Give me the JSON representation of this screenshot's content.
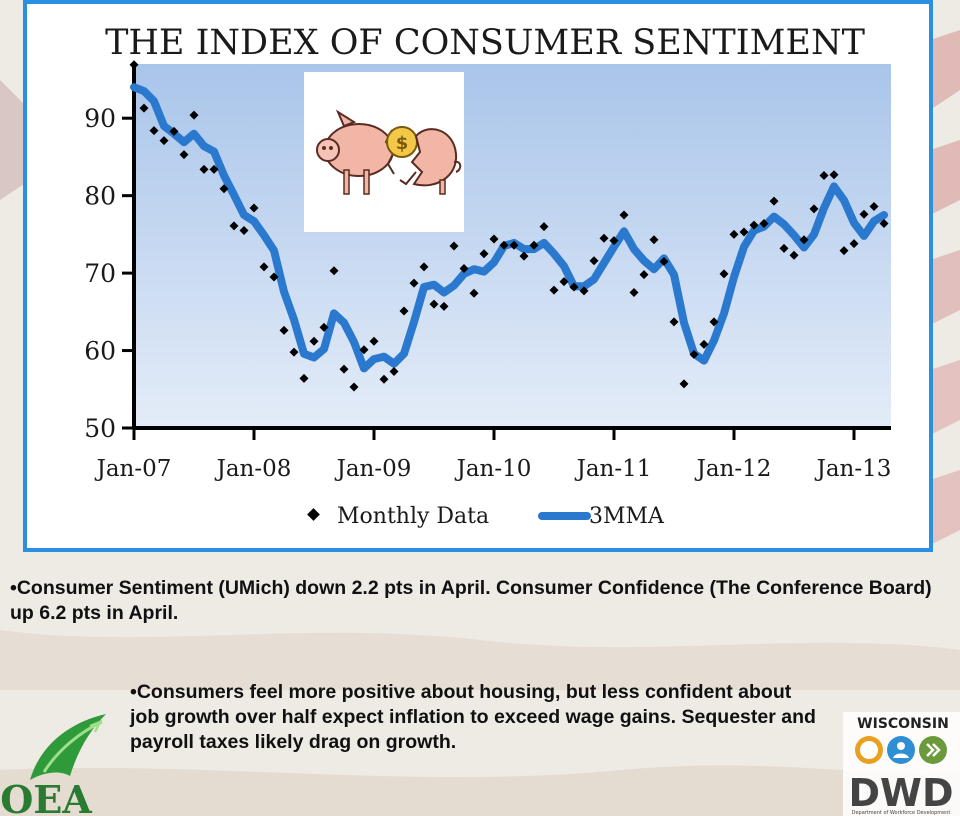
{
  "chart_data": {
    "type": "line",
    "title": "THE INDEX OF CONSUMER SENTIMENT",
    "xlabel": "",
    "ylabel": "",
    "ylim": [
      50,
      97
    ],
    "yticks": [
      50,
      60,
      70,
      80,
      90
    ],
    "xticks": [
      "Jan-07",
      "Jan-08",
      "Jan-09",
      "Jan-10",
      "Jan-11",
      "Jan-12",
      "Jan-13"
    ],
    "legend": "bottom",
    "grid": false,
    "series": [
      {
        "name": "Monthly Data",
        "style": "scatter",
        "color": "#000000",
        "start": "2007-01",
        "values": [
          96.9,
          91.3,
          88.4,
          87.1,
          88.3,
          85.3,
          90.4,
          83.4,
          83.4,
          80.9,
          76.1,
          75.5,
          78.4,
          70.8,
          69.5,
          62.6,
          59.8,
          56.4,
          61.2,
          63.0,
          70.3,
          57.6,
          55.3,
          60.1,
          61.2,
          56.3,
          57.3,
          65.1,
          68.7,
          70.8,
          66.0,
          65.7,
          73.5,
          70.6,
          67.4,
          72.5,
          74.4,
          73.6,
          73.6,
          72.2,
          73.6,
          76.0,
          67.8,
          68.9,
          68.2,
          67.7,
          71.6,
          74.5,
          74.2,
          77.5,
          67.5,
          69.8,
          74.3,
          71.5,
          63.7,
          55.7,
          59.5,
          60.8,
          63.7,
          69.9,
          75.0,
          75.3,
          76.2,
          76.4,
          79.3,
          73.2,
          72.3,
          74.3,
          78.3,
          82.6,
          82.7,
          72.9,
          73.8,
          77.6,
          78.6,
          76.4
        ]
      },
      {
        "name": "3MMA",
        "style": "line",
        "color": "#2a79cf",
        "start": "2007-01",
        "values": [
          94.0,
          93.5,
          92.2,
          89.0,
          88.0,
          86.9,
          88.0,
          86.4,
          85.7,
          82.6,
          80.1,
          77.5,
          76.7,
          74.9,
          72.9,
          67.6,
          64.0,
          59.6,
          59.1,
          60.2,
          64.8,
          63.6,
          61.1,
          57.7,
          58.9,
          59.2,
          58.3,
          59.6,
          63.7,
          68.2,
          68.5,
          67.5,
          68.4,
          69.9,
          70.5,
          70.2,
          71.4,
          73.5,
          73.9,
          73.1,
          73.1,
          73.9,
          72.5,
          70.9,
          68.3,
          68.3,
          69.2,
          71.3,
          73.4,
          75.4,
          73.1,
          71.6,
          70.5,
          71.9,
          69.8,
          63.6,
          59.6,
          58.7,
          61.3,
          64.8,
          69.5,
          73.4,
          75.5,
          76.0,
          77.3,
          76.3,
          74.9,
          73.3,
          75.0,
          78.4,
          81.2,
          79.4,
          76.5,
          74.8,
          76.7,
          77.5
        ]
      }
    ]
  },
  "notes": {
    "note1": "•Consumer Sentiment (UMich) down 2.2 pts in April.  Consumer Confidence (The Conference Board) up 6.2 pts in April.",
    "note2": "•Consumers feel more positive about housing, but less confident about job growth over half expect inflation to exceed wage gains.  Sequester and payroll taxes likely drag on growth."
  },
  "logos": {
    "left": "OEA",
    "right_top": "WISCONSIN",
    "right_bottom": "DWD",
    "right_caption": "Department of Workforce Development"
  },
  "icons": {
    "chart_illustration": "broken-piggy-bank-icon"
  },
  "colors": {
    "frame_border": "#2a8fe0",
    "plot_bg_top": "#a9c5ea",
    "plot_bg_bottom": "#e4ecf8",
    "line": "#2a79cf",
    "marker": "#000000"
  }
}
